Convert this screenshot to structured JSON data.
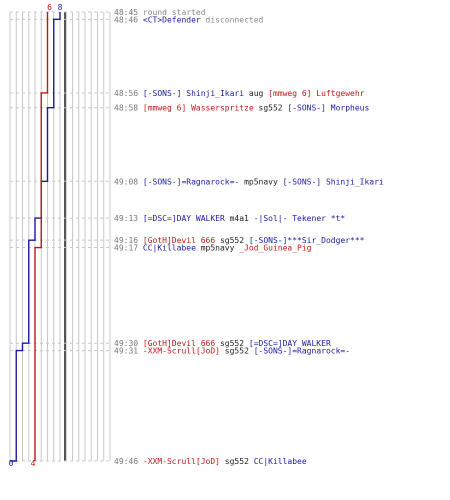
{
  "chart_data": {
    "type": "line",
    "title": "",
    "xlabel": "",
    "ylabel": "",
    "colors": {
      "ct": "#1a1aa0",
      "t": "#c01818",
      "grid": "#c8c8c8",
      "dashed": "#c8c8c8",
      "center": "#555555"
    },
    "series": [
      {
        "name": "",
        "team": "ct",
        "start": 8,
        "end": 0
      },
      {
        "name": "",
        "team": "t",
        "start": 6,
        "end": 4
      }
    ],
    "top_labels": {
      "left": "8",
      "right": "6"
    },
    "bottom_labels": {
      "left": "0",
      "right": "4"
    },
    "events": [
      {
        "time": "48:45",
        "kind": "system",
        "text": "round started",
        "ct": 8,
        "t": 6
      },
      {
        "time": "48:46",
        "kind": "system_ct",
        "actor": "<CT>Defender",
        "text": "disconnected",
        "ct": 7,
        "t": 6
      },
      {
        "time": "48:56",
        "kind": "kill",
        "killer": "[-SONS-] Shinji_Ikari",
        "killer_team": "ct",
        "weapon": "aug",
        "victim": "[mmweg 6] Luftgewehr",
        "victim_team": "t",
        "ct": 7,
        "t": 5
      },
      {
        "time": "48:58",
        "kind": "kill",
        "killer": "[mmweg 6] Wasserspritze",
        "killer_team": "t",
        "weapon": "sg552",
        "victim": "[-SONS-]  Morpheus",
        "victim_team": "ct",
        "ct": 6,
        "t": 5
      },
      {
        "time": "49:08",
        "kind": "kill",
        "killer": "[-SONS-]=Ragnarock=-",
        "killer_team": "ct",
        "weapon": "mp5navy",
        "victim": "[-SONS-] Shinji_Ikari",
        "victim_team": "ct",
        "ct": 5,
        "t": 5
      },
      {
        "time": "49:13",
        "kind": "kill",
        "killer": "[=DSC=]DAY WALKER",
        "killer_team": "ct",
        "weapon": "m4a1",
        "victim": "-|Sol|- Tekener *t*",
        "victim_team": "ct",
        "ct": 4,
        "t": 5
      },
      {
        "time": "49:16",
        "kind": "kill",
        "killer": "[GotH]Devil 666",
        "killer_team": "t",
        "weapon": "sg552",
        "victim": "[-SONS-]***Sir_Dodger***",
        "victim_team": "ct",
        "ct": 3,
        "t": 5
      },
      {
        "time": "49:17",
        "kind": "kill",
        "killer": "CC|Killabee",
        "killer_team": "ct",
        "weapon": "mp5navy",
        "victim": "_Jod_Guinea_Pig",
        "victim_team": "t",
        "ct": 3,
        "t": 4
      },
      {
        "time": "49:30",
        "kind": "kill",
        "killer": "[GotH]Devil 666",
        "killer_team": "t",
        "weapon": "sg552",
        "victim": "[=DSC=]DAY WALKER",
        "victim_team": "ct",
        "ct": 2,
        "t": 4
      },
      {
        "time": "49:31",
        "kind": "kill",
        "killer": "-XXM-Scrull[JoD]",
        "killer_team": "t",
        "weapon": "sg552",
        "victim": "[-SONS-]=Ragnarock=-",
        "victim_team": "ct",
        "ct": 1,
        "t": 4
      },
      {
        "time": "49:46",
        "kind": "kill",
        "killer": "-XXM-Scrull[JoD]",
        "killer_team": "t",
        "weapon": "sg552",
        "victim": "CC|Killabee",
        "victim_team": "ct",
        "ct": 0,
        "t": 4
      }
    ]
  }
}
